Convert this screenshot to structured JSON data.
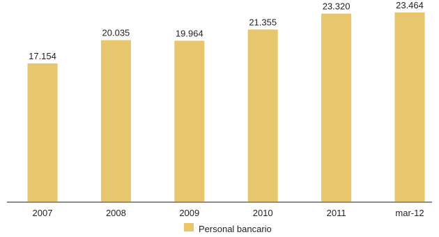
{
  "chart_data": {
    "type": "bar",
    "categories": [
      "2007",
      "2008",
      "2009",
      "2010",
      "2011",
      "mar-12"
    ],
    "series": [
      {
        "name": "Personal bancario",
        "values": [
          17.154,
          20.035,
          19.964,
          21.355,
          23.32,
          23.464
        ],
        "value_labels": [
          "17.154",
          "20.035",
          "19.964",
          "21.355",
          "23.320",
          "23.464"
        ],
        "color": "#E8C66E"
      }
    ],
    "ylim": [
      0,
      25
    ],
    "grid": false,
    "legend": {
      "position": "bottom-center"
    },
    "axis_color": "#8C8C8C"
  }
}
